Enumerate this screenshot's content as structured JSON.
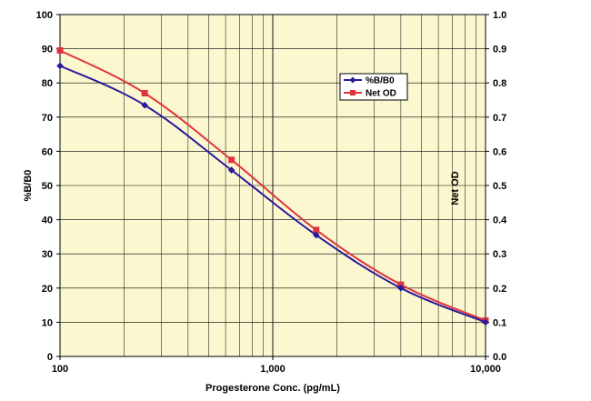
{
  "chart_data": {
    "type": "line",
    "title": "",
    "xlabel": "Progesterone Conc. (pg/mL)",
    "ylabel": "%B/B0",
    "y2label": "Net OD",
    "xscale": "log",
    "xlim": [
      100,
      10000
    ],
    "ylim": [
      0,
      100
    ],
    "y2lim": [
      0,
      1.0
    ],
    "grid": true,
    "legend_position": "top-right",
    "x_tick_labels": [
      "100",
      "1,000",
      "10,000"
    ],
    "y_tick_labels": [
      "0",
      "10",
      "20",
      "30",
      "40",
      "50",
      "60",
      "70",
      "80",
      "90",
      "100"
    ],
    "y2_tick_labels": [
      "0.0",
      "0.1",
      "0.2",
      "0.3",
      "0.4",
      "0.5",
      "0.6",
      "0.7",
      "0.8",
      "0.9",
      "1.0"
    ],
    "series": [
      {
        "name": "%B/B0",
        "axis": "left",
        "color": "#2a1a9a",
        "marker": "diamond",
        "x": [
          100,
          250,
          640,
          1600,
          4000,
          10000
        ],
        "y": [
          85,
          73.5,
          54.5,
          35.5,
          20,
          10
        ]
      },
      {
        "name": "Net OD",
        "axis": "right",
        "color": "#e0343c",
        "marker": "square",
        "x": [
          100,
          250,
          640,
          1600,
          4000,
          10000
        ],
        "y": [
          0.895,
          0.77,
          0.575,
          0.37,
          0.21,
          0.105
        ]
      }
    ]
  }
}
